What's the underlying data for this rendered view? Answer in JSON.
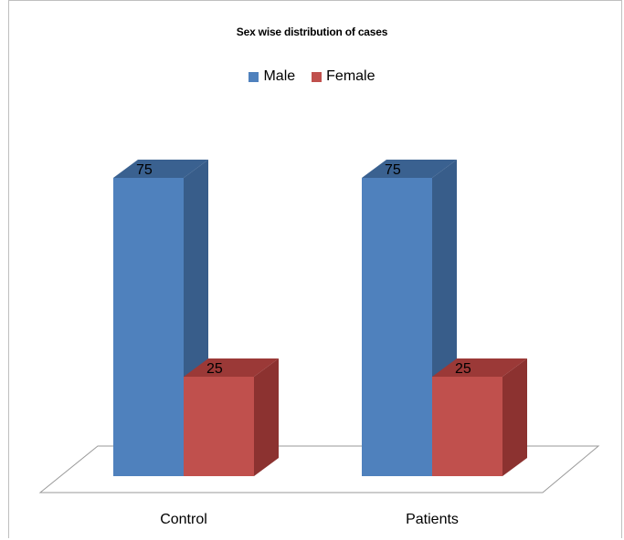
{
  "chart_data": {
    "type": "bar",
    "title": "Sex wise distribution of cases",
    "categories": [
      "Control",
      "Patients"
    ],
    "series": [
      {
        "name": "Male",
        "values": [
          75,
          75
        ],
        "color": "#4f81bd",
        "side_color": "#385d8a",
        "top_color": "#3a6190"
      },
      {
        "name": "Female",
        "values": [
          25,
          25
        ],
        "color": "#c0504d",
        "side_color": "#8c3230",
        "top_color": "#9b3937"
      }
    ],
    "data_labels": [
      "75",
      "25",
      "75",
      "25"
    ],
    "ylim": [
      0,
      100
    ],
    "legend_position": "top",
    "grid": false,
    "style": "3d-column"
  }
}
